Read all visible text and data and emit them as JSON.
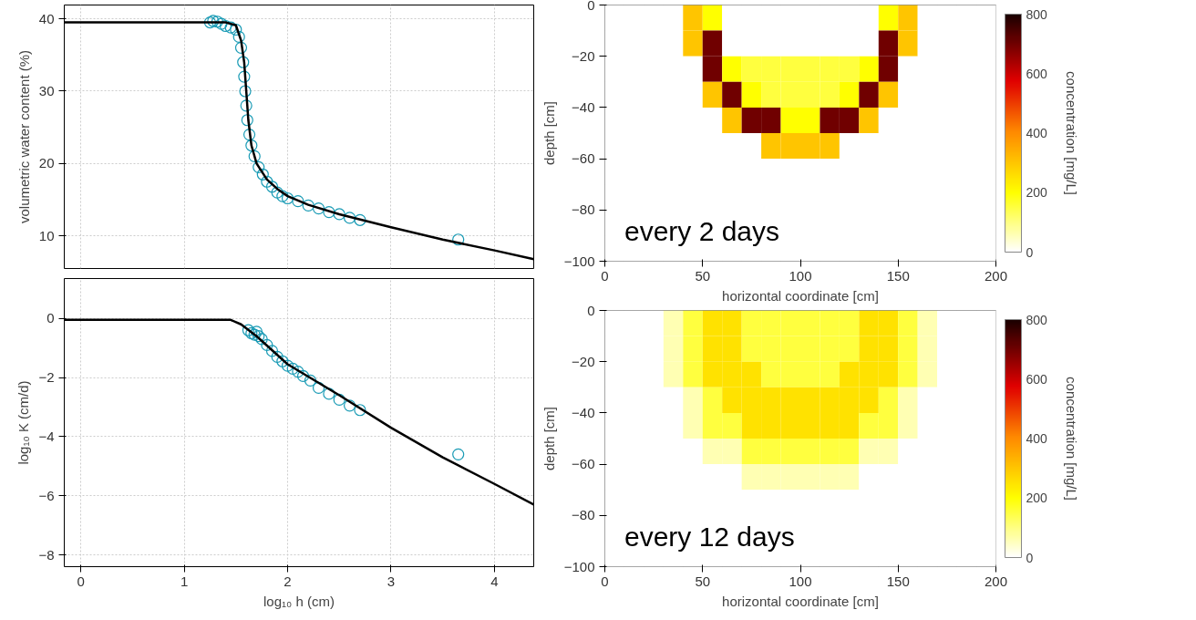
{
  "chart_data": [
    {
      "type": "scatter",
      "ylabel": "volumetric water content (%)",
      "xlim": [
        -0.16,
        4.38
      ],
      "ylim": [
        5.5,
        41.9
      ],
      "xticks": [
        0,
        1,
        2,
        3,
        4
      ],
      "yticks": [
        10,
        20,
        30,
        40
      ],
      "grid": true,
      "tick_labels": "y",
      "marker": "circle",
      "series": [
        {
          "type": "scatter",
          "color": "#1a9bb5",
          "x": [
            1.25,
            1.28,
            1.32,
            1.36,
            1.4,
            1.45,
            1.5,
            1.53,
            1.55,
            1.57,
            1.58,
            1.59,
            1.6,
            1.61,
            1.63,
            1.65,
            1.68,
            1.72,
            1.76,
            1.8,
            1.85,
            1.9,
            1.95,
            2.0,
            2.1,
            2.2,
            2.3,
            2.4,
            2.5,
            2.6,
            2.7,
            3.65
          ],
          "values": [
            39.5,
            39.7,
            39.6,
            39.3,
            39,
            38.8,
            38.5,
            37.5,
            36,
            34,
            32,
            30,
            28,
            26,
            24,
            22.5,
            21,
            19.5,
            18.5,
            17.5,
            16.8,
            16,
            15.5,
            15.2,
            14.8,
            14.2,
            13.8,
            13.3,
            13,
            12.5,
            12.2,
            9.5
          ]
        },
        {
          "type": "line",
          "color": "#000000",
          "marker": "none",
          "x": [
            -0.16,
            1.4,
            1.5,
            1.55,
            1.58,
            1.6,
            1.62,
            1.65,
            1.7,
            1.8,
            1.9,
            2.0,
            2.2,
            2.5,
            3.0,
            3.5,
            4.0,
            4.38
          ],
          "values": [
            39.5,
            39.5,
            39.1,
            37,
            34,
            30,
            26,
            22.5,
            20,
            17.8,
            16.5,
            15.5,
            14.3,
            13,
            11.2,
            9.5,
            8,
            6.8
          ]
        }
      ]
    },
    {
      "type": "scatter",
      "xlabel": "log₁₀ h (cm)",
      "ylabel": "log₁₀ K (cm/d)",
      "xlim": [
        -0.16,
        4.38
      ],
      "ylim": [
        -8.4,
        1.35
      ],
      "xticks": [
        0,
        1,
        2,
        3,
        4
      ],
      "yticks": [
        -8,
        -6,
        -4,
        -2,
        0
      ],
      "grid": true,
      "marker": "circle",
      "series": [
        {
          "type": "scatter",
          "color": "#1a9bb5",
          "x": [
            1.62,
            1.65,
            1.68,
            1.7,
            1.72,
            1.75,
            1.8,
            1.85,
            1.9,
            1.95,
            2.0,
            2.05,
            2.1,
            2.15,
            2.22,
            2.3,
            2.4,
            2.5,
            2.6,
            2.7,
            3.65
          ],
          "values": [
            -0.4,
            -0.5,
            -0.55,
            -0.45,
            -0.6,
            -0.7,
            -0.9,
            -1.1,
            -1.3,
            -1.45,
            -1.6,
            -1.7,
            -1.8,
            -1.95,
            -2.1,
            -2.35,
            -2.55,
            -2.75,
            -2.95,
            -3.1,
            -4.6
          ]
        },
        {
          "type": "line",
          "color": "#000000",
          "marker": "none",
          "x": [
            -0.16,
            1.45,
            1.55,
            1.7,
            2.0,
            2.5,
            3.0,
            3.5,
            4.0,
            4.38
          ],
          "values": [
            -0.05,
            -0.05,
            -0.2,
            -0.6,
            -1.55,
            -2.6,
            -3.7,
            -4.7,
            -5.6,
            -6.3
          ]
        }
      ]
    },
    {
      "type": "heatmap",
      "xlabel": "horizontal coordinate [cm]",
      "ylabel": "depth [cm]",
      "clabel": "concentration [mg/L]",
      "annotations": [
        "every 2 days"
      ],
      "xlim": [
        0,
        200
      ],
      "ylim": [
        -100,
        0
      ],
      "xticks": [
        0,
        50,
        100,
        150,
        200
      ],
      "yticks": [
        -100,
        -80,
        -60,
        -40,
        -20,
        0
      ],
      "clim": [
        0,
        800
      ],
      "cticks": [
        0,
        200,
        400,
        600,
        800
      ],
      "x": [
        5,
        15,
        25,
        35,
        45,
        55,
        65,
        75,
        85,
        95,
        105,
        115,
        125,
        135,
        145,
        155,
        165,
        175,
        185,
        195
      ],
      "y": [
        -5,
        -15,
        -25,
        -35,
        -45,
        -55,
        -65,
        -75,
        -85,
        -95
      ],
      "cells": [
        [
          0,
          0,
          0,
          0,
          300,
          200,
          0,
          0,
          0,
          0,
          0,
          0,
          0,
          0,
          200,
          300,
          0,
          0,
          0,
          0
        ],
        [
          0,
          0,
          0,
          0,
          300,
          700,
          0,
          0,
          0,
          0,
          0,
          0,
          0,
          0,
          700,
          300,
          0,
          0,
          0,
          0
        ],
        [
          0,
          0,
          0,
          0,
          0,
          700,
          200,
          150,
          150,
          150,
          150,
          150,
          150,
          200,
          700,
          0,
          0,
          0,
          0,
          0
        ],
        [
          0,
          0,
          0,
          0,
          0,
          300,
          700,
          200,
          150,
          150,
          150,
          150,
          200,
          700,
          300,
          0,
          0,
          0,
          0,
          0
        ],
        [
          0,
          0,
          0,
          0,
          0,
          0,
          300,
          700,
          700,
          200,
          200,
          700,
          700,
          300,
          0,
          0,
          0,
          0,
          0,
          0
        ],
        [
          0,
          0,
          0,
          0,
          0,
          0,
          0,
          0,
          300,
          300,
          300,
          300,
          0,
          0,
          0,
          0,
          0,
          0,
          0,
          0
        ],
        [
          0,
          0,
          0,
          0,
          0,
          0,
          0,
          0,
          0,
          0,
          0,
          0,
          0,
          0,
          0,
          0,
          0,
          0,
          0,
          0
        ],
        [
          0,
          0,
          0,
          0,
          0,
          0,
          0,
          0,
          0,
          0,
          0,
          0,
          0,
          0,
          0,
          0,
          0,
          0,
          0,
          0
        ],
        [
          0,
          0,
          0,
          0,
          0,
          0,
          0,
          0,
          0,
          0,
          0,
          0,
          0,
          0,
          0,
          0,
          0,
          0,
          0,
          0
        ],
        [
          0,
          0,
          0,
          0,
          0,
          0,
          0,
          0,
          0,
          0,
          0,
          0,
          0,
          0,
          0,
          0,
          0,
          0,
          0,
          0
        ]
      ]
    },
    {
      "type": "heatmap",
      "xlabel": "horizontal coordinate [cm]",
      "ylabel": "depth [cm]",
      "clabel": "concentration [mg/L]",
      "annotations": [
        "every 12 days"
      ],
      "xlim": [
        0,
        200
      ],
      "ylim": [
        -100,
        0
      ],
      "xticks": [
        0,
        50,
        100,
        150,
        200
      ],
      "yticks": [
        -100,
        -80,
        -60,
        -40,
        -20,
        0
      ],
      "clim": [
        0,
        800
      ],
      "cticks": [
        0,
        200,
        400,
        600,
        800
      ],
      "x": [
        5,
        15,
        25,
        35,
        45,
        55,
        65,
        75,
        85,
        95,
        105,
        115,
        125,
        135,
        145,
        155,
        165,
        175,
        185,
        195
      ],
      "y": [
        -5,
        -15,
        -25,
        -35,
        -45,
        -55,
        -65,
        -75,
        -85,
        -95
      ],
      "cells": [
        [
          0,
          0,
          0,
          60,
          150,
          250,
          250,
          150,
          150,
          150,
          150,
          150,
          150,
          250,
          250,
          150,
          60,
          0,
          0,
          0
        ],
        [
          0,
          0,
          0,
          60,
          150,
          250,
          250,
          150,
          150,
          150,
          150,
          150,
          150,
          250,
          250,
          150,
          60,
          0,
          0,
          0
        ],
        [
          0,
          0,
          0,
          60,
          150,
          250,
          250,
          250,
          150,
          150,
          150,
          150,
          250,
          250,
          250,
          150,
          60,
          0,
          0,
          0
        ],
        [
          0,
          0,
          0,
          0,
          60,
          150,
          250,
          250,
          250,
          250,
          250,
          250,
          250,
          250,
          150,
          60,
          0,
          0,
          0,
          0
        ],
        [
          0,
          0,
          0,
          0,
          60,
          150,
          150,
          250,
          250,
          250,
          250,
          250,
          250,
          150,
          150,
          60,
          0,
          0,
          0,
          0
        ],
        [
          0,
          0,
          0,
          0,
          0,
          60,
          60,
          150,
          150,
          150,
          150,
          150,
          150,
          60,
          60,
          0,
          0,
          0,
          0,
          0
        ],
        [
          0,
          0,
          0,
          0,
          0,
          0,
          0,
          60,
          60,
          60,
          60,
          60,
          60,
          0,
          0,
          0,
          0,
          0,
          0,
          0
        ],
        [
          0,
          0,
          0,
          0,
          0,
          0,
          0,
          0,
          0,
          0,
          0,
          0,
          0,
          0,
          0,
          0,
          0,
          0,
          0,
          0
        ],
        [
          0,
          0,
          0,
          0,
          0,
          0,
          0,
          0,
          0,
          0,
          0,
          0,
          0,
          0,
          0,
          0,
          0,
          0,
          0,
          0
        ],
        [
          0,
          0,
          0,
          0,
          0,
          0,
          0,
          0,
          0,
          0,
          0,
          0,
          0,
          0,
          0,
          0,
          0,
          0,
          0,
          0
        ]
      ]
    }
  ]
}
